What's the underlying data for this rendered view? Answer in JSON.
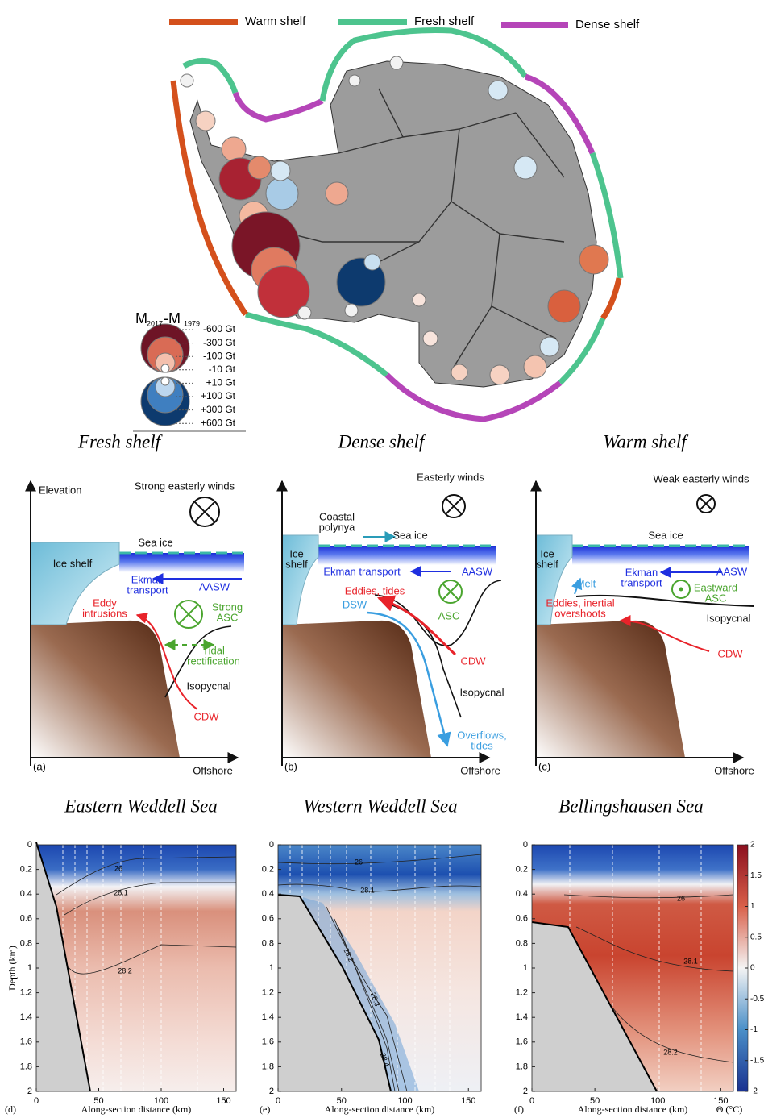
{
  "legend": {
    "items": [
      {
        "name": "Warm shelf",
        "color": "#d4501c"
      },
      {
        "name": "Fresh shelf",
        "color": "#4dc48e"
      },
      {
        "name": "Dense shelf",
        "color": "#b545b8"
      }
    ]
  },
  "mass_legend": {
    "title": [
      "M",
      "2017",
      "-M",
      "1979"
    ],
    "labels": [
      "-600 Gt",
      "-300 Gt",
      "-100 Gt",
      "-10 Gt",
      "+10 Gt",
      "+100 Gt",
      "+300 Gt",
      "+600 Gt"
    ]
  },
  "schematics": [
    {
      "title": "Fresh shelf",
      "panel": "(a)",
      "labels": {
        "elevation": [
          "Elevation"
        ],
        "winds": [
          "Strong easterly winds"
        ],
        "sea_ice": [
          "Sea ice"
        ],
        "ice_shelf": [
          "Ice shelf"
        ],
        "ekman": [
          "Ekman",
          "transport"
        ],
        "aasw": [
          "AASW"
        ],
        "eddy": [
          "Eddy",
          "intrusions"
        ],
        "asc": [
          "Strong",
          "ASC"
        ],
        "tidal": [
          "Tidal",
          "rectification"
        ],
        "isopycnal": [
          "Isopycnal"
        ],
        "cdw": [
          "CDW"
        ],
        "offshore": [
          "Offshore"
        ]
      }
    },
    {
      "title": "Dense shelf",
      "panel": "(b)",
      "labels": {
        "winds": [
          "Easterly winds"
        ],
        "polynya": [
          "Coastal",
          "polynya"
        ],
        "sea_ice": [
          "Sea ice"
        ],
        "ice_shelf": [
          "Ice",
          "shelf"
        ],
        "ekman": [
          "Ekman transport"
        ],
        "aasw": [
          "AASW"
        ],
        "eddy": [
          "Eddies, tides"
        ],
        "dsw": [
          "DSW"
        ],
        "asc": [
          "ASC"
        ],
        "cdw": [
          "CDW"
        ],
        "isopycnal": [
          "Isopycnal"
        ],
        "overflows": [
          "Overflows,",
          "tides"
        ],
        "offshore": [
          "Offshore"
        ]
      }
    },
    {
      "title": "Warm shelf",
      "panel": "(c)",
      "labels": {
        "winds": [
          "Weak easterly winds"
        ],
        "sea_ice": [
          "Sea ice"
        ],
        "ice_shelf": [
          "Ice",
          "shelf"
        ],
        "melt": [
          "Melt"
        ],
        "ekman": [
          "Ekman",
          "transport"
        ],
        "aasw": [
          "AASW"
        ],
        "asc": [
          "Eastward",
          "ASC"
        ],
        "eddy": [
          "Eddies, inertial",
          "overshoots"
        ],
        "isopycnal": [
          "Isopycnal"
        ],
        "cdw": [
          "CDW"
        ],
        "offshore": [
          "Offshore"
        ]
      }
    }
  ],
  "sections": [
    {
      "title": "Eastern Weddell Sea",
      "panel": "(d)",
      "xlabel": "Along-section distance (km)",
      "xlim": [
        0,
        160
      ],
      "xticks": [
        0,
        50,
        100,
        150
      ],
      "ylim": [
        0,
        2
      ],
      "yticks": [
        0,
        0.2,
        0.4,
        0.6,
        0.8,
        1,
        1.2,
        1.4,
        1.6,
        1.8,
        2
      ],
      "contours": [
        26,
        28.1,
        28.2
      ]
    },
    {
      "title": "Western Weddell Sea",
      "panel": "(e)",
      "xlabel": "Along-section distance (km)",
      "xlim": [
        0,
        160
      ],
      "xticks": [
        0,
        50,
        100,
        150
      ],
      "ylim": [
        0,
        2
      ],
      "yticks": [
        0,
        0.2,
        0.4,
        0.6,
        0.8,
        1,
        1.2,
        1.4,
        1.6,
        1.8,
        2
      ],
      "contours": [
        26,
        28.1,
        28.2,
        28.3,
        28.4
      ]
    },
    {
      "title": "Bellingshausen Sea",
      "panel": "(f)",
      "xlabel": "Along-section distance (km)",
      "xlim": [
        0,
        160
      ],
      "xticks": [
        0,
        50,
        100,
        150
      ],
      "ylim": [
        0,
        2
      ],
      "yticks": [
        0,
        0.2,
        0.4,
        0.6,
        0.8,
        1,
        1.2,
        1.4,
        1.6,
        1.8,
        2
      ],
      "contours": [
        26,
        28.1,
        28.2
      ]
    }
  ],
  "ylabel": "Depth (km)",
  "colorbar": {
    "label": "Θ (°C)",
    "lim": [
      -2,
      2
    ],
    "ticks": [
      2,
      1.5,
      1,
      0.5,
      0,
      -0.5,
      -1,
      -1.5,
      -2
    ]
  }
}
